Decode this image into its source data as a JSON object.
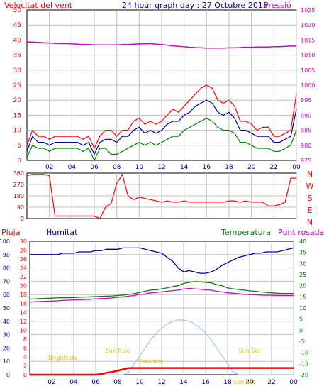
{
  "header": {
    "title": "24 hour graph day : 27 Octubre 2015",
    "left_label": "Velocitat del vent",
    "right_label": "Pressió"
  },
  "colors": {
    "red": "#ff0000",
    "blue": "#0000a0",
    "green": "#008000",
    "magenta": "#d000d0",
    "dark_red": "#b00000",
    "gold": "#e0c000",
    "light_blue": "#a0c8f0",
    "grid": "#c0c0c0",
    "frame": "#000000"
  },
  "legend_bottom": {
    "pluja": "Pluja",
    "humitat": "Humitat",
    "temperatura": "Temperatura",
    "punt_rosada": "Punt rosada"
  },
  "chart_data": [
    {
      "type": "line",
      "name": "wind_pressure",
      "title": "24 hour graph day : 27 Octubre 2015",
      "ylabel": "Velocitat del vent",
      "y2label": "Pressió",
      "x_ticks": [
        "02",
        "04",
        "06",
        "08",
        "10",
        "12",
        "14",
        "16",
        "18",
        "20",
        "22",
        "00"
      ],
      "y_ticks": [
        0,
        5,
        10,
        15,
        20,
        25,
        30,
        35,
        40,
        45,
        50
      ],
      "y2_ticks": [
        975,
        980,
        985,
        990,
        995,
        1000,
        1005,
        1010,
        1015,
        1020,
        1025
      ],
      "xlim": [
        0,
        24
      ],
      "ylim": [
        0,
        50
      ],
      "y2lim": [
        975,
        1025
      ],
      "grid": true,
      "x": [
        0,
        0.5,
        1,
        1.5,
        2,
        2.5,
        3,
        3.5,
        4,
        4.5,
        5,
        5.5,
        6,
        6.5,
        7,
        7.5,
        8,
        8.5,
        9,
        9.5,
        10,
        10.5,
        11,
        11.5,
        12,
        12.5,
        13,
        13.5,
        14,
        14.5,
        15,
        15.5,
        16,
        16.5,
        17,
        17.5,
        18,
        18.5,
        19,
        19.5,
        20,
        20.5,
        21,
        21.5,
        22,
        22.5,
        23,
        23.5,
        24
      ],
      "series": [
        {
          "key": "gust",
          "color": "red",
          "values": [
            5,
            10,
            8,
            8,
            7,
            8,
            8,
            8,
            8,
            8,
            7,
            8,
            4,
            8,
            10,
            10,
            8,
            10,
            10,
            13,
            14,
            12,
            13,
            12,
            13,
            15,
            17,
            16,
            18,
            20,
            22,
            24,
            25,
            24,
            20,
            19,
            20,
            18,
            13,
            13,
            12,
            10,
            11,
            11,
            8,
            8,
            9,
            10,
            22
          ]
        },
        {
          "key": "avg",
          "color": "blue",
          "values": [
            3,
            8,
            6,
            6,
            5,
            6,
            6,
            6,
            6,
            6,
            5,
            6,
            2,
            6,
            7,
            7,
            6,
            8,
            8,
            10,
            11,
            9,
            10,
            9,
            10,
            12,
            13,
            13,
            15,
            16,
            18,
            19,
            20,
            19,
            16,
            15,
            16,
            14,
            10,
            10,
            9,
            8,
            8,
            8,
            6,
            6,
            7,
            8,
            17
          ]
        },
        {
          "key": "min",
          "color": "green",
          "values": [
            1,
            5,
            4,
            4,
            3,
            4,
            4,
            4,
            4,
            4,
            3,
            4,
            0,
            4,
            4,
            2,
            2,
            3,
            4,
            5,
            6,
            5,
            6,
            5,
            6,
            7,
            8,
            8,
            10,
            11,
            12,
            13,
            14,
            13,
            11,
            10,
            10,
            9,
            6,
            6,
            5,
            4,
            4,
            4,
            3,
            3,
            4,
            5,
            10
          ]
        },
        {
          "key": "pressure",
          "color": "magenta",
          "axis": "y2",
          "values": [
            1014.4,
            1014.3,
            1014.2,
            1014.1,
            1014.0,
            1013.9,
            1013.8,
            1013.8,
            1013.7,
            1013.6,
            1013.5,
            1013.5,
            1013.4,
            1013.4,
            1013.4,
            1013.4,
            1013.4,
            1013.5,
            1013.5,
            1013.6,
            1013.7,
            1013.7,
            1013.8,
            1013.6,
            1013.5,
            1013.3,
            1013.1,
            1012.9,
            1012.8,
            1012.6,
            1012.5,
            1012.4,
            1012.3,
            1012.3,
            1012.3,
            1012.3,
            1012.4,
            1012.4,
            1012.5,
            1012.6,
            1012.6,
            1012.7,
            1012.7,
            1012.7,
            1012.8,
            1012.8,
            1012.9,
            1013.0,
            1013.0
          ]
        }
      ]
    },
    {
      "type": "scatter",
      "name": "wind_direction",
      "x_ticks": [],
      "y_ticks": [
        0,
        90,
        180,
        270,
        360
      ],
      "compass_labels": [
        "N",
        "W",
        "S",
        "E",
        "N"
      ],
      "xlim": [
        0,
        24
      ],
      "ylim": [
        0,
        360
      ],
      "grid": true,
      "x": [
        0,
        0.5,
        1,
        1.5,
        2,
        2.5,
        3,
        3.5,
        4,
        4.5,
        5,
        5.5,
        6,
        6.5,
        7,
        7.5,
        8,
        8.5,
        9,
        9.5,
        10,
        10.5,
        11,
        11.5,
        12,
        12.5,
        13,
        13.5,
        14,
        14.5,
        15,
        15.5,
        16,
        16.5,
        17,
        17.5,
        18,
        18.5,
        19,
        19.5,
        20,
        20.5,
        21,
        21.5,
        22,
        22.5,
        23,
        23.5,
        24
      ],
      "series": [
        {
          "key": "direction",
          "color": "red",
          "values": [
            340,
            350,
            350,
            350,
            340,
            20,
            20,
            20,
            20,
            20,
            20,
            20,
            20,
            0,
            90,
            120,
            280,
            350,
            180,
            150,
            170,
            160,
            150,
            140,
            130,
            140,
            130,
            130,
            140,
            130,
            130,
            130,
            130,
            130,
            130,
            130,
            140,
            140,
            130,
            140,
            130,
            130,
            130,
            100,
            100,
            110,
            130,
            320,
            320
          ]
        }
      ]
    },
    {
      "type": "line",
      "name": "rain_humidity_temperature",
      "legend": [
        "Pluja",
        "Humitat",
        "Temperatura",
        "Punt rosada"
      ],
      "x_ticks": [
        "02",
        "04",
        "06",
        "08",
        "10",
        "12",
        "14",
        "16",
        "18",
        "20",
        "22",
        "00"
      ],
      "axis_pluja_ticks": [
        0,
        10,
        20,
        30,
        40,
        50,
        60,
        70,
        80,
        90,
        100
      ],
      "axis_humitat_ticks": [
        0,
        2,
        4,
        6,
        8,
        10,
        12,
        14,
        16,
        18,
        20,
        22,
        24,
        26,
        28,
        30
      ],
      "axis_temperatura_ticks": [
        -20,
        -15,
        -10,
        -5,
        0,
        5,
        10,
        15,
        20,
        25,
        30,
        35,
        40
      ],
      "annotations": [
        "Sun Rise",
        "Sun Set",
        "Sun Set",
        "Brightside",
        "Sunshine"
      ],
      "xlim": [
        0,
        24
      ],
      "ylim_pluja": [
        0,
        100
      ],
      "ylim_temperatura": [
        -20,
        40
      ],
      "grid": true,
      "x": [
        0,
        0.5,
        1,
        1.5,
        2,
        2.5,
        3,
        3.5,
        4,
        4.5,
        5,
        5.5,
        6,
        6.5,
        7,
        7.5,
        8,
        8.5,
        9,
        9.5,
        10,
        10.5,
        11,
        11.5,
        12,
        12.5,
        13,
        13.5,
        14,
        14.5,
        15,
        15.5,
        16,
        16.5,
        17,
        17.5,
        18,
        18.5,
        19,
        19.5,
        20,
        20.5,
        21,
        21.5,
        22,
        22.5,
        23,
        23.5,
        24
      ],
      "series": [
        {
          "key": "humitat",
          "color": "blue",
          "axis": "pluja",
          "values": [
            90,
            90,
            90,
            90,
            90,
            90,
            91,
            91,
            91,
            92,
            92,
            92,
            93,
            93,
            94,
            94,
            94,
            95,
            95,
            95,
            95,
            94,
            93,
            92,
            91,
            88,
            85,
            80,
            77,
            78,
            77,
            76,
            76,
            77,
            79,
            82,
            84,
            86,
            88,
            89,
            90,
            91,
            91,
            92,
            92,
            92,
            93,
            94,
            95
          ]
        },
        {
          "key": "temperatura",
          "color": "green",
          "axis": "temperatura",
          "values": [
            14.0,
            14.1,
            14.2,
            14.3,
            14.4,
            14.5,
            14.6,
            14.6,
            14.7,
            14.8,
            14.9,
            15.0,
            15.1,
            15.2,
            15.3,
            15.4,
            15.6,
            15.8,
            16.1,
            16.4,
            17.0,
            17.5,
            18.0,
            18.2,
            18.6,
            19.0,
            19.6,
            20.0,
            21.0,
            21.5,
            21.8,
            21.7,
            21.5,
            21.3,
            20.5,
            20.0,
            19.0,
            18.6,
            18.3,
            18.0,
            17.7,
            17.5,
            17.2,
            17.0,
            16.8,
            16.6,
            16.5,
            16.5,
            16.5
          ]
        },
        {
          "key": "punt_rosada",
          "color": "magenta",
          "axis": "temperatura",
          "values": [
            12.6,
            12.8,
            12.9,
            13.0,
            13.1,
            13.2,
            13.4,
            13.5,
            13.6,
            13.7,
            13.8,
            13.9,
            14.1,
            14.2,
            14.3,
            14.5,
            14.8,
            15.0,
            15.3,
            15.6,
            16.1,
            16.3,
            16.8,
            17.0,
            17.2,
            17.5,
            17.8,
            18.0,
            18.5,
            18.8,
            18.6,
            18.4,
            18.2,
            18.0,
            17.5,
            17.2,
            16.8,
            16.6,
            16.4,
            16.1,
            16.0,
            15.9,
            15.8,
            15.7,
            15.7,
            15.6,
            15.6,
            15.6,
            15.6
          ]
        },
        {
          "key": "pluja",
          "color": "red",
          "axis": "pluja",
          "values": [
            0,
            0,
            0,
            0,
            0,
            0,
            0,
            0,
            0,
            0,
            0,
            0,
            0,
            0.5,
            1.5,
            2,
            3,
            4,
            5,
            5,
            5,
            5,
            5,
            5,
            5,
            5,
            5,
            5,
            5,
            5,
            5,
            5,
            5,
            5,
            5,
            5,
            5,
            5,
            5,
            5,
            5,
            5,
            5,
            5,
            5,
            5,
            5,
            5,
            5
          ]
        },
        {
          "key": "solar",
          "color": "light_blue",
          "axis": "pluja",
          "values": [
            0,
            0,
            0,
            0,
            0,
            0,
            0,
            0,
            0,
            0,
            0,
            0,
            0,
            0,
            0,
            0,
            0,
            0,
            2,
            8,
            14,
            20,
            26,
            31,
            35,
            38,
            40,
            41,
            41,
            40,
            38,
            35,
            31,
            26,
            20,
            14,
            8,
            2,
            0,
            0,
            0,
            0,
            0,
            0,
            0,
            0,
            0,
            0,
            0
          ]
        }
      ]
    }
  ]
}
